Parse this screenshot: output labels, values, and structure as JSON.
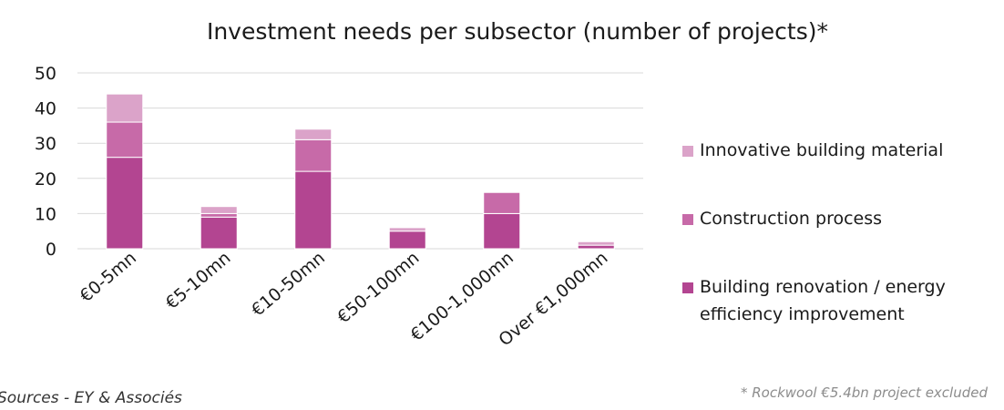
{
  "chart_data": {
    "type": "bar",
    "stacked": true,
    "title": "Investment needs per subsector (number of projects)*",
    "xlabel": "",
    "ylabel": "",
    "categories": [
      "€0-5mn",
      "€5-10mn",
      "€10-50mn",
      "€50-100mn",
      "€100-1,000mn",
      "Over €1,000mn"
    ],
    "yticks": [
      "0",
      "10",
      "20",
      "30",
      "40",
      "50"
    ],
    "ylim": [
      0,
      50
    ],
    "grid": true,
    "legend_position": "right",
    "series": [
      {
        "name": "Building renovation / energy efficiency improvement",
        "values": [
          26,
          9,
          22,
          5,
          10,
          1
        ],
        "color": "#b34591"
      },
      {
        "name": "Construction process",
        "values": [
          10,
          1,
          9,
          0,
          6,
          0
        ],
        "color": "#c76aa8"
      },
      {
        "name": "Innovative building material",
        "values": [
          8,
          2,
          3,
          1,
          0,
          1
        ],
        "color": "#dba3c9"
      }
    ],
    "legend_order": [
      2,
      1,
      0
    ],
    "legend_lines": [
      [
        "Innovative building material"
      ],
      [
        "Construction process"
      ],
      [
        "Building renovation / energy",
        "efficiency improvement"
      ]
    ]
  },
  "footer": {
    "source": "Sources - EY & Associés",
    "footnote": "* Rockwool €5.4bn project excluded"
  }
}
